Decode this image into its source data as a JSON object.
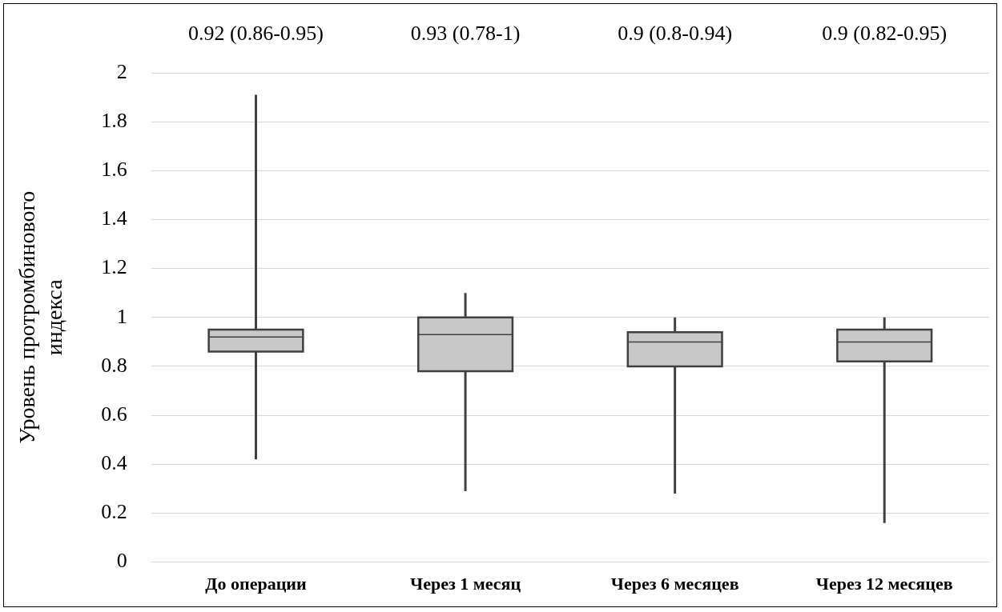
{
  "chart_data": {
    "type": "box",
    "ylabel": "Уровень протромбинового индекса",
    "categories": [
      "До операции",
      "Через 1 месяц",
      "Через 6 месяцев",
      "Через 12 месяцев"
    ],
    "boxes": [
      {
        "low": 0.42,
        "q1": 0.86,
        "median": 0.92,
        "q3": 0.95,
        "high": 1.91
      },
      {
        "low": 0.29,
        "q1": 0.78,
        "median": 0.93,
        "q3": 1,
        "high": 1.1
      },
      {
        "low": 0.28,
        "q1": 0.8,
        "median": 0.9,
        "q3": 0.94,
        "high": 1
      },
      {
        "low": 0.16,
        "q1": 0.82,
        "median": 0.9,
        "q3": 0.95,
        "high": 1
      }
    ],
    "value_labels": [
      "0.92 (0.86-0.95)",
      "0.93 (0.78-1)",
      "0.9 (0.8-0.94)",
      "0.9 (0.82-0.95)"
    ],
    "color": "#c8c8c8",
    "ylim": [
      0,
      2
    ],
    "yticks": [
      0,
      0.2,
      0.4,
      0.6,
      0.8,
      1,
      1.2,
      1.4,
      1.6,
      1.8,
      2
    ],
    "grid": "y",
    "legend": false
  }
}
